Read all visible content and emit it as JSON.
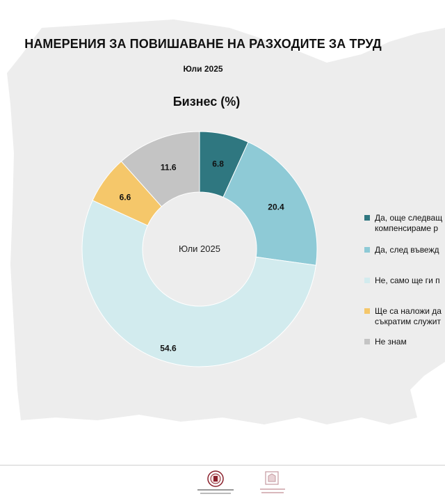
{
  "header": {
    "title": "НАМЕРЕНИЯ ЗА ПОВИШАВАНЕ НА РАЗХОДИТЕ ЗА ТРУД",
    "subtitle": "Юли 2025"
  },
  "chart_data": {
    "type": "pie",
    "donut": true,
    "title": "Бизнес (%)",
    "center_label": "Юли 2025",
    "categories": [
      "Да, още следващ... компенсираме р...",
      "Да, след въвежд...",
      "Не, само ще ги п...",
      "Ще са наложи д... съкратим служит...",
      "Не знам"
    ],
    "values": [
      6.8,
      20.4,
      54.6,
      6.6,
      11.6
    ],
    "colors": [
      "#2f7780",
      "#8ecad6",
      "#d2ebee",
      "#f5c76a",
      "#c4c4c4"
    ],
    "value_labels": [
      "6.8",
      "20.4",
      "54.6",
      "6.6",
      "11.6"
    ],
    "legend": {
      "placement": "right",
      "items": [
        {
          "line1": "Да, още следващ",
          "line2": "компенсираме р"
        },
        {
          "line1": "Да, след въвежд",
          "line2": ""
        },
        {
          "line1": "Не, само ще ги п",
          "line2": ""
        },
        {
          "line1": "Ще са наложи да",
          "line2": "съкратим служит"
        },
        {
          "line1": "Не знам",
          "line2": ""
        }
      ]
    }
  },
  "footer": {
    "logo1_name": "ministry-finance-emblem",
    "logo2_name": "bulgarian-national-bank-logo"
  }
}
